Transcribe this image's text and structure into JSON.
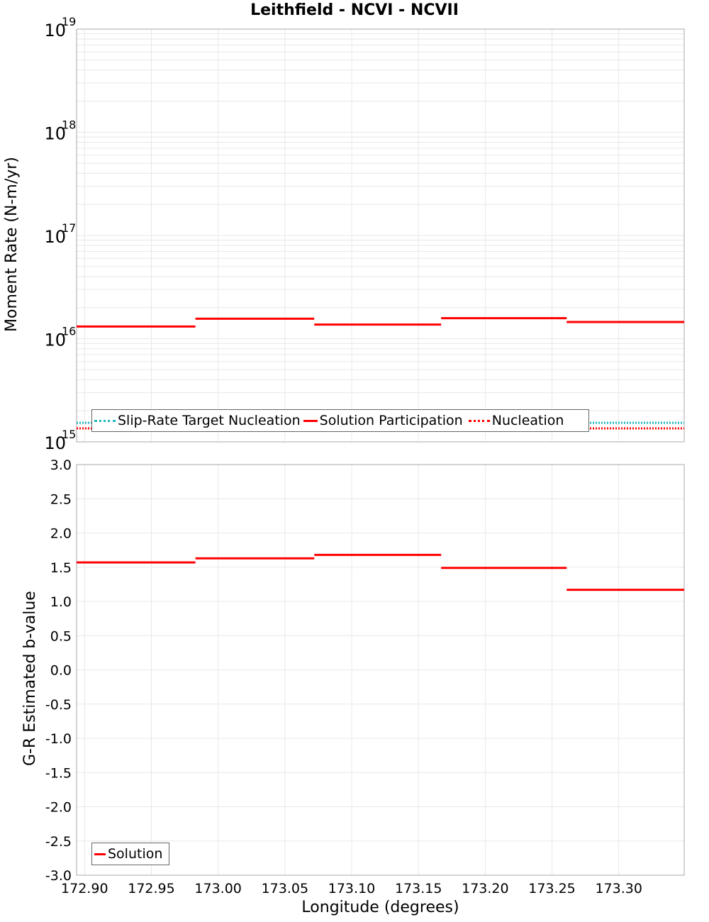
{
  "title": "Leithfield - NCVI - NCVII",
  "colors": {
    "solution": "#ff0000",
    "slip_rate_target": "#20b8c0",
    "nucleation": "#ff0000",
    "grid": "#e8e8e8",
    "frame": "#aaaaaa"
  },
  "chart_data": [
    {
      "type": "line",
      "title": "Leithfield - NCVI - NCVII",
      "xlabel": "Longitude (degrees)",
      "ylabel": "Moment Rate (N-m/yr)",
      "yscale": "log",
      "ylim": [
        1000000000000000.0,
        1e+19
      ],
      "xlim": [
        172.894,
        173.349
      ],
      "y_tick_labels": [
        "10^15",
        "10^16",
        "10^17",
        "10^18",
        "10^19"
      ],
      "grid": true,
      "legend_position": "bottom-left inside",
      "legend": [
        "Slip-Rate Target Nucleation",
        "Solution Participation",
        "Nucleation"
      ],
      "series": [
        {
          "name": "Solution Participation",
          "style": "solid",
          "color": "#ff0000",
          "segments": [
            {
              "x0": 172.894,
              "x1": 172.983,
              "y": 1.31e+16
            },
            {
              "x0": 172.983,
              "x1": 173.072,
              "y": 1.56e+16
            },
            {
              "x0": 173.072,
              "x1": 173.167,
              "y": 1.37e+16
            },
            {
              "x0": 173.167,
              "x1": 173.261,
              "y": 1.58e+16
            },
            {
              "x0": 173.261,
              "x1": 173.349,
              "y": 1.45e+16
            }
          ]
        },
        {
          "name": "Slip-Rate Target Nucleation",
          "style": "dotted",
          "color": "#20b8c0",
          "segments": [
            {
              "x0": 172.894,
              "x1": 173.349,
              "y": 1530000000000000.0
            }
          ]
        },
        {
          "name": "Nucleation",
          "style": "dotted",
          "color": "#ff0000",
          "segments": [
            {
              "x0": 172.894,
              "x1": 173.349,
              "y": 1350000000000000.0
            }
          ]
        }
      ]
    },
    {
      "type": "line",
      "xlabel": "Longitude (degrees)",
      "ylabel": "G-R Estimated b-value",
      "ylim": [
        -3.0,
        3.0
      ],
      "xlim": [
        172.894,
        173.349
      ],
      "y_ticks": [
        "3.0",
        "2.5",
        "2.0",
        "1.5",
        "1.0",
        "0.5",
        "0.0",
        "-0.5",
        "-1.0",
        "-1.5",
        "-2.0",
        "-2.5",
        "-3.0"
      ],
      "x_ticks": [
        "172.90",
        "172.95",
        "173.00",
        "173.05",
        "173.10",
        "173.15",
        "173.20",
        "173.25",
        "173.30"
      ],
      "grid": true,
      "legend_position": "bottom-left inside",
      "legend": [
        "Solution"
      ],
      "series": [
        {
          "name": "Solution",
          "style": "solid",
          "color": "#ff0000",
          "segments": [
            {
              "x0": 172.894,
              "x1": 172.983,
              "y": 1.57
            },
            {
              "x0": 172.983,
              "x1": 173.072,
              "y": 1.63
            },
            {
              "x0": 173.072,
              "x1": 173.167,
              "y": 1.68
            },
            {
              "x0": 173.167,
              "x1": 173.261,
              "y": 1.49
            },
            {
              "x0": 173.261,
              "x1": 173.349,
              "y": 1.17
            }
          ]
        }
      ]
    }
  ],
  "top_chart": {
    "ylabel": "Moment Rate (N-m/yr)",
    "y_ticks": [
      {
        "base": "10",
        "exp": "19"
      },
      {
        "base": "10",
        "exp": "18"
      },
      {
        "base": "10",
        "exp": "17"
      },
      {
        "base": "10",
        "exp": "16"
      },
      {
        "base": "10",
        "exp": "15"
      }
    ],
    "legend": {
      "item1": "Slip-Rate Target Nucleation",
      "item2": "Solution Participation",
      "item3": "Nucleation"
    }
  },
  "bottom_chart": {
    "ylabel": "G-R Estimated b-value",
    "xlabel": "Longitude (degrees)",
    "legend": {
      "item1": "Solution"
    }
  }
}
